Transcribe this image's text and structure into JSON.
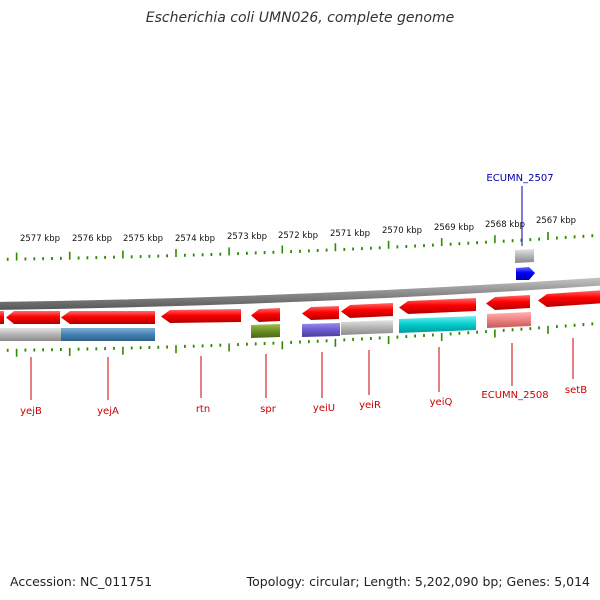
{
  "title": "Escherichia coli UMN026, complete genome",
  "footer": {
    "accession": "Accession: NC_011751",
    "summary": "Topology: circular; Length: 5,202,090 bp; Genes: 5,014"
  },
  "colors": {
    "cds": "#ff0000",
    "tick": "#2e8b00",
    "backbone": "#888888",
    "label_red": "#cc0000",
    "label_blue": "#0000aa",
    "feature_blue": "#0000ff",
    "feature_grey": "#b4b4b4",
    "feature_steelblue": "#4682b4",
    "feature_olive": "#6b8e23",
    "feature_slateblue": "#6a5acd",
    "feature_cyan": "#00cccc",
    "feature_pink": "#f08080"
  },
  "scale": {
    "unit": "kbp",
    "labels": [
      "2577 kbp",
      "2576 kbp",
      "2575 kbp",
      "2574 kbp",
      "2573 kbp",
      "2572 kbp",
      "2571 kbp",
      "2570 kbp",
      "2569 kbp",
      "2568 kbp",
      "2567 kbp"
    ]
  },
  "genes": {
    "outer": [
      {
        "label": "ECUMN_2507"
      }
    ],
    "inner": [
      {
        "label": "yejB"
      },
      {
        "label": "yejA"
      },
      {
        "label": "rtn"
      },
      {
        "label": "spr"
      },
      {
        "label": "yeiU"
      },
      {
        "label": "yeiR"
      },
      {
        "label": "yeiQ"
      },
      {
        "label": "ECUMN_2508"
      },
      {
        "label": "setB"
      }
    ]
  }
}
